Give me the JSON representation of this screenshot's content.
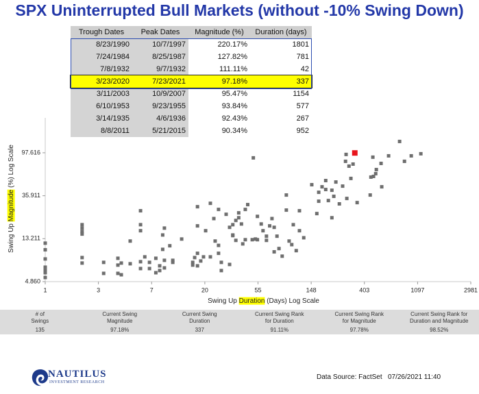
{
  "title": "SPX Uninterrupted Bull Markets (without -10% Swing Down)",
  "table": {
    "header": [
      "Trough Dates",
      "Peak Dates",
      "Magnitude (%)",
      "Duration (days)"
    ],
    "rows": [
      [
        "8/23/1990",
        "10/7/1997",
        "220.17%",
        "1801"
      ],
      [
        "7/24/1984",
        "8/25/1987",
        "127.82%",
        "781"
      ],
      [
        "7/8/1932",
        "9/7/1932",
        "111.11%",
        "42"
      ],
      [
        "3/23/2020",
        "7/23/2021",
        "97.18%",
        "337"
      ],
      [
        "3/11/2003",
        "10/9/2007",
        "95.47%",
        "1154"
      ],
      [
        "6/10/1953",
        "9/23/1955",
        "93.84%",
        "577"
      ],
      [
        "3/14/1935",
        "4/6/1936",
        "92.43%",
        "267"
      ],
      [
        "8/8/2011",
        "5/21/2015",
        "90.34%",
        "952"
      ]
    ],
    "highlight_row": 3,
    "highlight_color": "#ffff00"
  },
  "chart_data": {
    "type": "scatter",
    "xlabel": [
      "Swing Up ",
      "Duration",
      " (Days) Log Scale"
    ],
    "ylabel": [
      "Swing Up ",
      "Magnitude",
      " (%) Log Scale"
    ],
    "xlog": true,
    "ylog": true,
    "xlim": [
      1,
      2981
    ],
    "ylim": [
      4.86,
      220
    ],
    "xticks": [
      1,
      {
        "value": 2.718,
        "label": "3"
      },
      {
        "value": 7.389,
        "label": "7"
      },
      {
        "value": 20.09,
        "label": "20"
      },
      {
        "value": 54.6,
        "label": "55"
      },
      {
        "value": 148.4,
        "label": "148"
      },
      {
        "value": 403.4,
        "label": "403"
      },
      1097,
      2981
    ],
    "yticks": [
      {
        "value": 4.86,
        "label": "4.860"
      },
      13.211,
      35.911,
      97.616
    ],
    "series": [
      {
        "color": "#6e6e6e",
        "x": [
          1,
          1,
          1,
          1,
          1,
          1,
          1,
          2,
          2,
          2,
          2,
          2,
          2,
          3,
          3,
          3.92,
          3.92,
          3.92,
          4.18,
          4.18,
          4.94,
          4.94,
          6,
          6,
          6,
          6,
          6,
          6.5,
          7.1,
          7.1,
          8,
          8,
          8.6,
          8.6,
          9.1,
          9.1,
          9.4,
          9.4,
          9.4,
          10.4,
          11,
          11,
          13,
          16,
          16,
          16.6,
          17.5,
          17.5,
          17.5,
          17.5,
          18.6,
          19.6,
          20.4,
          22.3,
          22.3,
          23.8,
          24.4,
          26,
          26,
          26,
          27.4,
          27.4,
          30,
          32,
          32,
          34,
          34,
          34,
          36,
          36,
          38,
          38,
          40,
          41,
          43,
          43,
          45,
          49,
          50,
          52,
          54,
          54,
          58,
          60,
          64,
          64,
          68,
          71,
          74,
          74,
          78,
          81,
          86,
          93,
          93,
          98,
          103,
          106,
          112,
          119,
          119,
          129,
          150,
          165,
          171,
          171,
          182,
          195,
          195,
          205,
          219,
          219,
          227,
          236,
          252,
          268,
          283,
          286,
          290,
          302,
          313,
          326,
          352,
          450,
          456,
          473,
          479,
          499,
          505,
          552,
          559,
          636,
          782,
          857,
          974,
          1166
        ],
        "values": [
          11.9,
          10.2,
          8.24,
          6.8,
          6.29,
          5.98,
          5.35,
          18.3,
          16.9,
          15.6,
          14.7,
          8.51,
          7.49,
          7.61,
          5.89,
          8.37,
          7.14,
          5.89,
          7.49,
          5.7,
          12.5,
          7.37,
          25.3,
          18.3,
          15.9,
          7.73,
          6.59,
          8.65,
          7.61,
          6.59,
          8.37,
          5.98,
          7.02,
          6.29,
          10.3,
          14.4,
          16.9,
          7.98,
          6.69,
          11.2,
          7.98,
          7.61,
          13.1,
          7.14,
          7.61,
          8.51,
          27.8,
          17.8,
          9.4,
          7.02,
          7.86,
          8.65,
          15.9,
          30.1,
          8.65,
          21.1,
          12.5,
          26.1,
          11.3,
          9.4,
          7.61,
          6.29,
          23.3,
          17.2,
          7.25,
          18.3,
          14.4,
          14.2,
          20.2,
          12.7,
          21.5,
          24.1,
          18.6,
          11.7,
          26.1,
          12.9,
          29.2,
          12.9,
          86.7,
          13.1,
          22.2,
          12.9,
          18.6,
          15.9,
          14,
          12.7,
          17.8,
          21.1,
          17.2,
          9.72,
          14,
          10.5,
          8.79,
          36.5,
          25.7,
          12.5,
          11.5,
          18.3,
          10,
          25.3,
          15.9,
          13.5,
          46.4,
          23.7,
          38.9,
          31.6,
          44.2,
          51.1,
          41.5,
          32.1,
          40.8,
          21.5,
          35.4,
          49.4,
          29.7,
          44.9,
          80,
          93.9,
          33.7,
          71.5,
          53.7,
          75,
          30.6,
          36.5,
          55.4,
          88.1,
          56.3,
          60,
          66,
          76.2,
          44.2,
          90.9,
          127,
          80,
          90.9,
          95.4
        ]
      },
      {
        "color": "#e8141c",
        "x": [
          337
        ],
        "values": [
          97.18
        ]
      }
    ],
    "label_highlight_color": "#ffff00"
  },
  "stats": {
    "headers": [
      "# of\nSwings",
      "Current Swing\nMagnitude",
      "Current Swing\nDuration",
      "Current Swing Rank\nfor Duration",
      "Current Swing Rank\nfor Magnitude",
      "Current Swing Rank for\nDuration and Magnitude"
    ],
    "values": [
      "135",
      "97.18%",
      "337",
      "91.11%",
      "97.78%",
      "98.52%"
    ]
  },
  "footer": {
    "logo": "NAUTILUS",
    "logo_sub": "INVESTMENT RESEARCH",
    "source": "Data Source: FactSet",
    "timestamp": "07/26/2021 11:40"
  }
}
